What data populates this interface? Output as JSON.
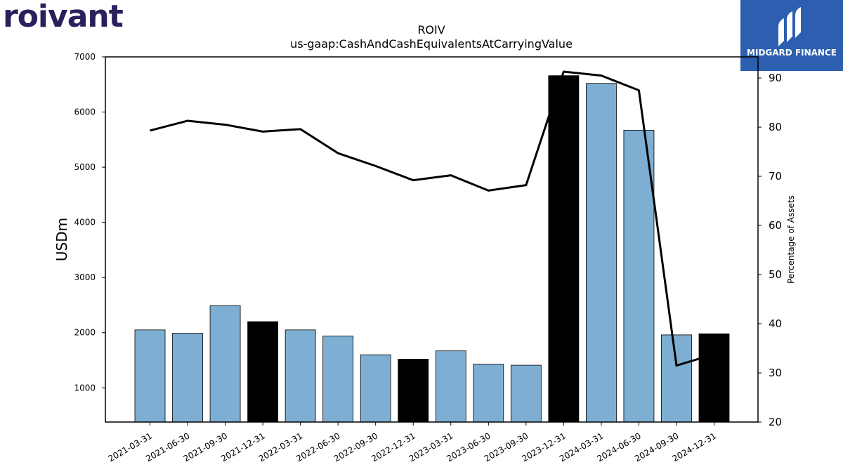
{
  "logos": {
    "left_text": "roivant",
    "right_text": "MIDGARD FINANCE"
  },
  "chart_data": {
    "type": "bar",
    "title": "ROIV",
    "subtitle": "us-gaap:CashAndCashEquivalentsAtCarryingValue",
    "ylabel": "USDm",
    "y2label": "Percentage of Assets",
    "ylim": [
      380,
      7000
    ],
    "y2lim": [
      20,
      94.3
    ],
    "yticks": [
      1000,
      2000,
      3000,
      4000,
      5000,
      6000,
      7000
    ],
    "y2ticks": [
      20,
      30,
      40,
      50,
      60,
      70,
      80,
      90
    ],
    "categories": [
      "2021-03-31",
      "2021-06-30",
      "2021-09-30",
      "2021-12-31",
      "2022-03-31",
      "2022-06-30",
      "2022-09-30",
      "2022-12-31",
      "2023-03-31",
      "2023-06-30",
      "2023-09-30",
      "2023-12-31",
      "2024-03-31",
      "2024-06-30",
      "2024-09-30",
      "2024-12-31"
    ],
    "series": [
      {
        "type": "bar",
        "values": [
          2050,
          1990,
          2490,
          2200,
          2050,
          1940,
          1600,
          1520,
          1670,
          1430,
          1410,
          6660,
          6520,
          5670,
          1960,
          1980
        ],
        "colors": [
          "#7eafd3",
          "#7eafd3",
          "#7eafd3",
          "#000000",
          "#7eafd3",
          "#7eafd3",
          "#7eafd3",
          "#000000",
          "#7eafd3",
          "#7eafd3",
          "#7eafd3",
          "#000000",
          "#7eafd3",
          "#7eafd3",
          "#7eafd3",
          "#000000"
        ]
      },
      {
        "type": "line",
        "axis": "right",
        "values": [
          79.3,
          81.3,
          80.5,
          79.1,
          79.6,
          74.7,
          72.1,
          69.2,
          70.2,
          67.1,
          68.2,
          91.3,
          90.5,
          87.5,
          31.5,
          33.8
        ]
      }
    ],
    "grid": false
  }
}
